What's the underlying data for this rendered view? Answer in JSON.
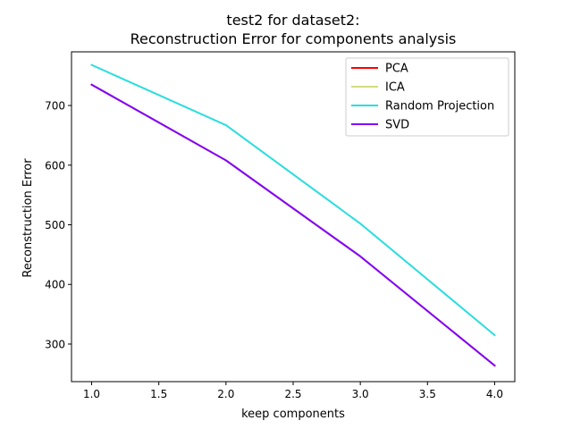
{
  "chart_data": {
    "type": "line",
    "title_lines": [
      "test2 for dataset2:",
      "Reconstruction Error for components analysis"
    ],
    "xlabel": "keep components",
    "ylabel": "Reconstruction Error",
    "x": [
      1.0,
      2.0,
      3.0,
      4.0
    ],
    "xlim": [
      0.85,
      4.15
    ],
    "ylim": [
      237,
      790
    ],
    "xticks": [
      1.0,
      1.5,
      2.0,
      2.5,
      3.0,
      3.5,
      4.0
    ],
    "xtick_labels": [
      "1.0",
      "1.5",
      "2.0",
      "2.5",
      "3.0",
      "3.5",
      "4.0"
    ],
    "yticks": [
      300,
      400,
      500,
      600,
      700
    ],
    "ytick_labels": [
      "300",
      "400",
      "500",
      "600",
      "700"
    ],
    "grid": false,
    "legend_position": "top-right",
    "series": [
      {
        "name": "PCA",
        "color": "#ff0000",
        "values": [
          735,
          608,
          447,
          264
        ]
      },
      {
        "name": "ICA",
        "color": "#d4dd81",
        "values": [
          735,
          608,
          447,
          264
        ]
      },
      {
        "name": "Random Projection",
        "color": "#2adddd",
        "values": [
          768,
          667,
          502,
          315
        ]
      },
      {
        "name": "SVD",
        "color": "#8000ff",
        "values": [
          735,
          608,
          447,
          264
        ]
      }
    ]
  }
}
